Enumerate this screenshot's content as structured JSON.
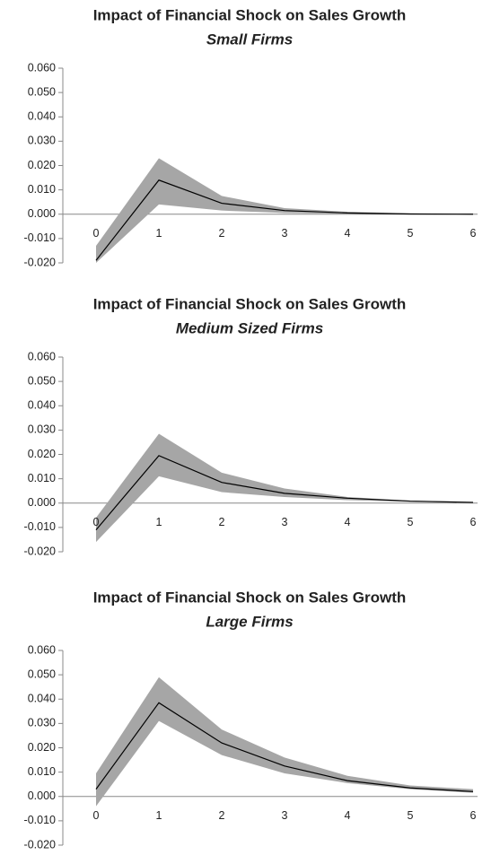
{
  "chart_data": [
    {
      "type": "line",
      "title": "Impact of Financial Shock on Sales Growth",
      "subtitle": "Small Firms",
      "x": [
        0,
        1,
        2,
        3,
        4,
        5,
        6
      ],
      "values": [
        -0.019,
        0.014,
        0.0045,
        0.0015,
        0.0005,
        0.0001,
        0.0
      ],
      "lower": [
        -0.02,
        0.004,
        0.0015,
        0.0005,
        0.0002,
        0.0,
        0.0
      ],
      "upper": [
        -0.013,
        0.023,
        0.0075,
        0.0025,
        0.001,
        0.0003,
        0.0001
      ],
      "color": "#000000",
      "band_color": "#a6a6a6",
      "ylim": [
        -0.02,
        0.06
      ],
      "yticks": [
        {
          "value": -0.02,
          "label": "-0.020"
        },
        {
          "value": -0.01,
          "label": "-0.010"
        },
        {
          "value": 0,
          "label": "0.000"
        },
        {
          "value": 0.01,
          "label": "0.010"
        },
        {
          "value": 0.02,
          "label": "0.020"
        },
        {
          "value": 0.03,
          "label": "0.030"
        },
        {
          "value": 0.04,
          "label": "0.040"
        },
        {
          "value": 0.05,
          "label": "0.050"
        },
        {
          "value": 0.06,
          "label": "0.060"
        }
      ]
    },
    {
      "type": "line",
      "title": "Impact of Financial Shock on Sales Growth",
      "subtitle": "Medium Sized Firms",
      "x": [
        0,
        1,
        2,
        3,
        4,
        5,
        6
      ],
      "values": [
        -0.011,
        0.0195,
        0.0085,
        0.004,
        0.002,
        0.0008,
        0.0003
      ],
      "lower": [
        -0.016,
        0.011,
        0.0045,
        0.0025,
        0.0012,
        0.0005,
        0.0002
      ],
      "upper": [
        -0.006,
        0.0285,
        0.0125,
        0.006,
        0.0025,
        0.001,
        0.0004
      ],
      "color": "#000000",
      "band_color": "#a6a6a6",
      "ylim": [
        -0.02,
        0.06
      ],
      "yticks": [
        {
          "value": -0.02,
          "label": "-0.020"
        },
        {
          "value": -0.01,
          "label": "-0.010"
        },
        {
          "value": 0,
          "label": "0.000"
        },
        {
          "value": 0.01,
          "label": "0.010"
        },
        {
          "value": 0.02,
          "label": "0.020"
        },
        {
          "value": 0.03,
          "label": "0.030"
        },
        {
          "value": 0.04,
          "label": "0.040"
        },
        {
          "value": 0.05,
          "label": "0.050"
        },
        {
          "value": 0.06,
          "label": "0.060"
        }
      ]
    },
    {
      "type": "line",
      "title": "Impact of Financial Shock on Sales Growth",
      "subtitle": "Large Firms",
      "x": [
        0,
        1,
        2,
        3,
        4,
        5,
        6
      ],
      "values": [
        0.003,
        0.0385,
        0.022,
        0.0125,
        0.0065,
        0.0035,
        0.002
      ],
      "lower": [
        -0.004,
        0.031,
        0.017,
        0.0095,
        0.0055,
        0.003,
        0.0015
      ],
      "upper": [
        0.0095,
        0.049,
        0.0275,
        0.016,
        0.0085,
        0.0045,
        0.003
      ],
      "color": "#000000",
      "band_color": "#a6a6a6",
      "ylim": [
        -0.02,
        0.06
      ],
      "yticks": [
        {
          "value": -0.02,
          "label": "-0.020"
        },
        {
          "value": -0.01,
          "label": "-0.010"
        },
        {
          "value": 0,
          "label": "0.000"
        },
        {
          "value": 0.01,
          "label": "0.010"
        },
        {
          "value": 0.02,
          "label": "0.020"
        },
        {
          "value": 0.03,
          "label": "0.030"
        },
        {
          "value": 0.04,
          "label": "0.040"
        },
        {
          "value": 0.05,
          "label": "0.050"
        },
        {
          "value": 0.06,
          "label": "0.060"
        }
      ]
    }
  ]
}
